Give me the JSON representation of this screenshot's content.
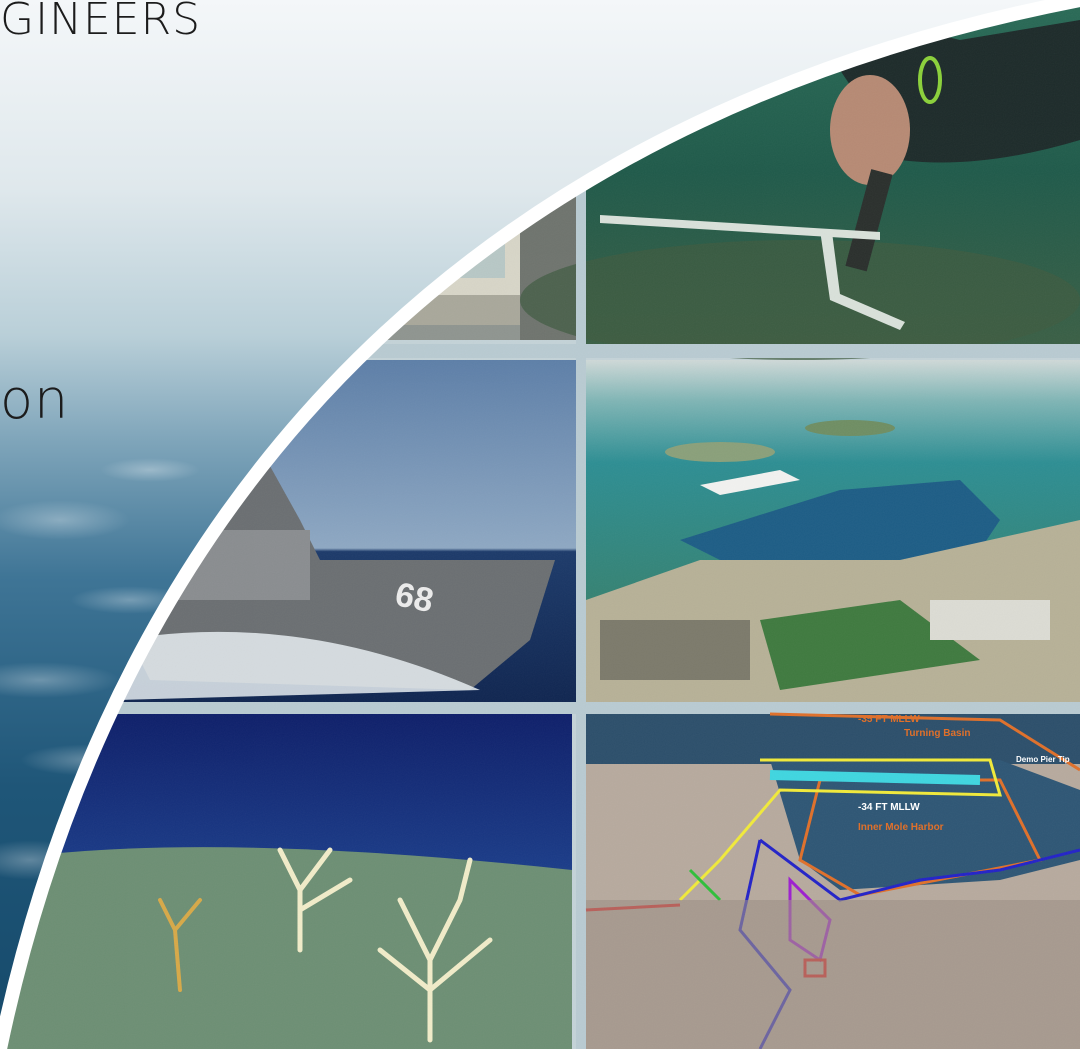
{
  "slide": {
    "title_fragment": "GINEERS",
    "body_fragment": "on"
  },
  "map": {
    "depth_label": "-35 FT MLLW",
    "turning_basin_label": "Turning Basin",
    "pier_label": "Demo Pier Tip",
    "harbor_depth_label": "-34 FT MLLW",
    "harbor_label": "Inner Mole Harbor"
  },
  "ship": {
    "hull_number": "68"
  },
  "colors": {
    "sky_top": "#f2f6f8",
    "sea_blue": "#2e6a93",
    "divider": "#b9cbd2",
    "map_orange": "#e0702a",
    "map_yellow": "#f1ea3a",
    "map_cyan": "#3fd6e0",
    "map_blue": "#2323c8",
    "map_purple": "#9d1fd0",
    "map_red": "#e01b1b",
    "map_green": "#2fbf3a"
  }
}
